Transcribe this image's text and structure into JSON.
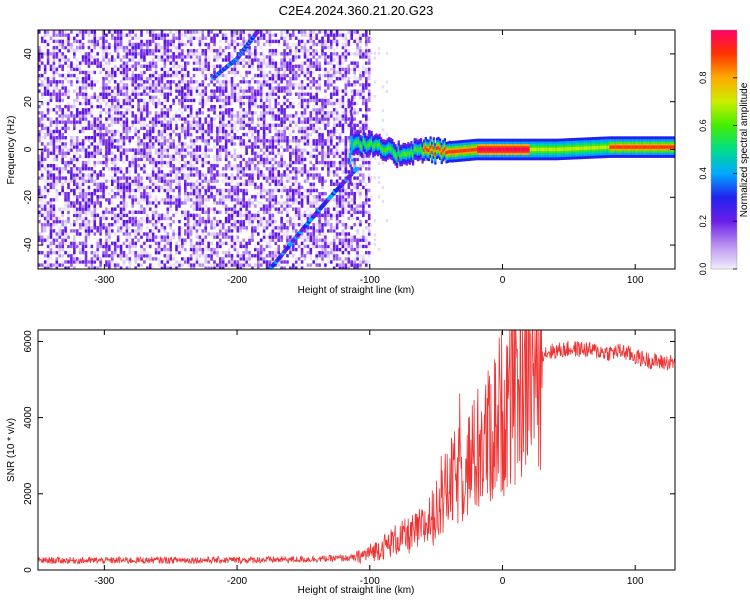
{
  "title": "C2E4.2024.360.21.20.G23",
  "chart_data": [
    {
      "type": "heatmap",
      "xlabel": "Height of straight line (km)",
      "ylabel": "Frequency (Hz)",
      "xlim": [
        -350,
        130
      ],
      "ylim": [
        -50,
        50
      ],
      "xticks": [
        -300,
        -200,
        -100,
        0,
        100
      ],
      "xtick_labels": [
        "-300",
        "-200",
        "-100",
        "0",
        "100"
      ],
      "yticks": [
        -40,
        -20,
        0,
        20,
        40
      ],
      "ytick_labels": [
        "-40",
        "-20",
        "0",
        "20",
        "40"
      ],
      "colorbar": {
        "label": "Normalized spectral amplitude",
        "range": [
          0,
          1
        ],
        "ticks": [
          0.0,
          0.2,
          0.4,
          0.6,
          0.8
        ],
        "tick_labels": [
          "0.0",
          "0.2",
          "0.4",
          "0.6",
          "0.8"
        ],
        "colors": [
          "#f4eefc",
          "#b890f0",
          "#6a1ee8",
          "#2222ee",
          "#00aaff",
          "#00dd88",
          "#44ee00",
          "#ccee00",
          "#ffaa00",
          "#ff3300",
          "#ff0066"
        ]
      },
      "features": {
        "noise_region_x": [
          -350,
          -100
        ],
        "signal_band": [
          [
            -115,
            3
          ],
          [
            -100,
            2
          ],
          [
            -80,
            -2
          ],
          [
            -60,
            0
          ],
          [
            -40,
            -1
          ],
          [
            -20,
            0
          ],
          [
            0,
            0
          ],
          [
            40,
            0
          ],
          [
            80,
            1
          ],
          [
            100,
            1
          ],
          [
            130,
            1
          ]
        ],
        "upper_aliased_line": [
          [
            -218,
            30
          ],
          [
            -200,
            38
          ],
          [
            -185,
            49
          ]
        ],
        "lower_aliased_line": [
          [
            -175,
            -50
          ],
          [
            -150,
            -33
          ],
          [
            -130,
            -20
          ],
          [
            -110,
            -8
          ]
        ]
      },
      "grid": false
    },
    {
      "type": "line",
      "xlabel": "Height of straight line (km)",
      "ylabel": "SNR (10 * v/v)",
      "xlim": [
        -350,
        130
      ],
      "ylim": [
        0,
        6300
      ],
      "xticks": [
        -300,
        -200,
        -100,
        0,
        100
      ],
      "xtick_labels": [
        "-300",
        "-200",
        "-100",
        "0",
        "100"
      ],
      "yticks": [
        0,
        2000,
        4000,
        6000
      ],
      "ytick_labels": [
        "0",
        "2000",
        "4000",
        "6000"
      ],
      "series": [
        {
          "color": "#ee3333",
          "x": [
            -350,
            -300,
            -250,
            -200,
            -150,
            -110,
            -100,
            -90,
            -80,
            -70,
            -60,
            -50,
            -40,
            -30,
            -20,
            -10,
            0,
            10,
            20,
            30,
            40,
            50,
            60,
            70,
            80,
            90,
            100,
            110,
            120,
            130
          ],
          "y": [
            250,
            250,
            260,
            260,
            280,
            320,
            450,
            600,
            800,
            900,
            1100,
            1500,
            2200,
            2600,
            3000,
            3500,
            4200,
            4800,
            5400,
            5700,
            5750,
            5800,
            5800,
            5750,
            5700,
            5750,
            5600,
            5500,
            5450,
            5450
          ]
        }
      ],
      "grid": false
    }
  ]
}
